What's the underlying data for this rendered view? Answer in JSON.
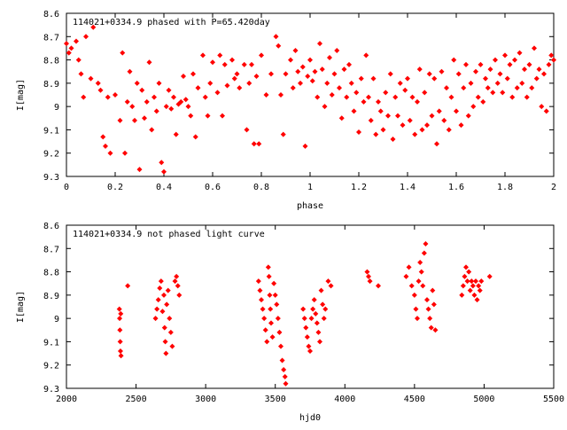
{
  "chart_data": [
    {
      "type": "scatter",
      "title": "114021+0334.9 phased with P=65.420day",
      "xlabel": "phase",
      "ylabel": "I[mag]",
      "xlim": [
        0,
        2
      ],
      "ylim": [
        8.6,
        9.3
      ],
      "y_inverted": true,
      "grid": false,
      "marker_color": "#ff0000",
      "marker": "filled-diamond",
      "x_ticks": [
        "0",
        "0.2",
        "0.4",
        "0.6",
        "0.8",
        "1",
        "1.2",
        "1.4",
        "1.6",
        "1.8",
        "2"
      ],
      "y_ticks": [
        "8.6",
        "8.7",
        "8.8",
        "8.9",
        "9",
        "9.1",
        "9.2",
        "9.3"
      ],
      "points": [
        [
          0.0,
          8.73
        ],
        [
          0.01,
          8.77
        ],
        [
          0.02,
          8.75
        ],
        [
          0.04,
          8.72
        ],
        [
          0.05,
          8.8
        ],
        [
          0.06,
          8.86
        ],
        [
          0.07,
          8.96
        ],
        [
          0.08,
          8.7
        ],
        [
          0.1,
          8.88
        ],
        [
          0.11,
          8.66
        ],
        [
          0.13,
          8.9
        ],
        [
          0.14,
          8.93
        ],
        [
          0.15,
          9.13
        ],
        [
          0.16,
          9.17
        ],
        [
          0.17,
          8.96
        ],
        [
          0.18,
          9.2
        ],
        [
          0.2,
          8.95
        ],
        [
          0.22,
          9.06
        ],
        [
          0.23,
          8.77
        ],
        [
          0.24,
          9.2
        ],
        [
          0.25,
          8.98
        ],
        [
          0.26,
          8.85
        ],
        [
          0.27,
          9.0
        ],
        [
          0.28,
          9.06
        ],
        [
          0.29,
          8.9
        ],
        [
          0.3,
          9.27
        ],
        [
          0.31,
          8.93
        ],
        [
          0.32,
          9.05
        ],
        [
          0.33,
          8.98
        ],
        [
          0.34,
          8.81
        ],
        [
          0.35,
          9.1
        ],
        [
          0.36,
          8.96
        ],
        [
          0.37,
          9.02
        ],
        [
          0.38,
          8.9
        ],
        [
          0.39,
          9.24
        ],
        [
          0.4,
          9.28
        ],
        [
          0.41,
          9.0
        ],
        [
          0.42,
          8.93
        ],
        [
          0.43,
          9.01
        ],
        [
          0.44,
          8.96
        ],
        [
          0.45,
          9.12
        ],
        [
          0.46,
          8.99
        ],
        [
          0.47,
          8.98
        ],
        [
          0.48,
          8.87
        ],
        [
          0.49,
          8.97
        ],
        [
          0.5,
          9.0
        ],
        [
          0.51,
          9.04
        ],
        [
          0.52,
          8.86
        ],
        [
          0.53,
          9.13
        ],
        [
          0.54,
          8.92
        ],
        [
          0.56,
          8.78
        ],
        [
          0.57,
          8.96
        ],
        [
          0.58,
          9.04
        ],
        [
          0.59,
          8.9
        ],
        [
          0.6,
          8.81
        ],
        [
          0.62,
          8.94
        ],
        [
          0.63,
          8.78
        ],
        [
          0.64,
          9.04
        ],
        [
          0.65,
          8.82
        ],
        [
          0.66,
          8.91
        ],
        [
          0.68,
          8.8
        ],
        [
          0.69,
          8.88
        ],
        [
          0.7,
          8.86
        ],
        [
          0.71,
          8.92
        ],
        [
          0.73,
          8.82
        ],
        [
          0.74,
          9.1
        ],
        [
          0.75,
          8.9
        ],
        [
          0.76,
          8.82
        ],
        [
          0.77,
          9.16
        ],
        [
          0.78,
          8.87
        ],
        [
          0.79,
          9.16
        ],
        [
          0.8,
          8.78
        ],
        [
          0.82,
          8.95
        ],
        [
          0.84,
          8.86
        ],
        [
          0.86,
          8.7
        ],
        [
          0.87,
          8.74
        ],
        [
          0.88,
          8.95
        ],
        [
          0.89,
          9.12
        ],
        [
          0.9,
          8.86
        ],
        [
          0.92,
          8.8
        ],
        [
          0.93,
          8.92
        ],
        [
          0.94,
          8.76
        ],
        [
          0.95,
          8.85
        ],
        [
          0.96,
          8.9
        ],
        [
          0.97,
          8.83
        ],
        [
          0.98,
          9.17
        ],
        [
          0.99,
          8.87
        ],
        [
          1.0,
          8.8
        ],
        [
          1.01,
          8.89
        ],
        [
          1.02,
          8.85
        ],
        [
          1.03,
          8.96
        ],
        [
          1.04,
          8.73
        ],
        [
          1.05,
          8.84
        ],
        [
          1.06,
          9.0
        ],
        [
          1.07,
          8.9
        ],
        [
          1.08,
          8.79
        ],
        [
          1.09,
          8.95
        ],
        [
          1.1,
          8.86
        ],
        [
          1.11,
          8.76
        ],
        [
          1.12,
          8.92
        ],
        [
          1.13,
          9.05
        ],
        [
          1.14,
          8.84
        ],
        [
          1.15,
          8.96
        ],
        [
          1.16,
          8.82
        ],
        [
          1.17,
          8.9
        ],
        [
          1.18,
          9.02
        ],
        [
          1.19,
          8.94
        ],
        [
          1.2,
          9.11
        ],
        [
          1.21,
          8.88
        ],
        [
          1.22,
          8.98
        ],
        [
          1.23,
          8.78
        ],
        [
          1.24,
          8.96
        ],
        [
          1.25,
          9.06
        ],
        [
          1.26,
          8.88
        ],
        [
          1.27,
          9.12
        ],
        [
          1.28,
          8.98
        ],
        [
          1.29,
          9.02
        ],
        [
          1.3,
          9.1
        ],
        [
          1.31,
          8.94
        ],
        [
          1.32,
          9.04
        ],
        [
          1.33,
          8.86
        ],
        [
          1.34,
          9.14
        ],
        [
          1.35,
          8.96
        ],
        [
          1.36,
          9.04
        ],
        [
          1.37,
          8.9
        ],
        [
          1.38,
          9.08
        ],
        [
          1.39,
          8.93
        ],
        [
          1.4,
          8.88
        ],
        [
          1.41,
          9.06
        ],
        [
          1.42,
          8.96
        ],
        [
          1.43,
          9.12
        ],
        [
          1.44,
          8.98
        ],
        [
          1.45,
          8.84
        ],
        [
          1.46,
          9.1
        ],
        [
          1.47,
          8.94
        ],
        [
          1.48,
          9.08
        ],
        [
          1.49,
          8.86
        ],
        [
          1.5,
          9.04
        ],
        [
          1.51,
          8.88
        ],
        [
          1.52,
          9.16
        ],
        [
          1.53,
          9.02
        ],
        [
          1.54,
          8.85
        ],
        [
          1.55,
          9.06
        ],
        [
          1.56,
          8.92
        ],
        [
          1.57,
          9.1
        ],
        [
          1.58,
          8.96
        ],
        [
          1.59,
          8.8
        ],
        [
          1.6,
          9.02
        ],
        [
          1.61,
          8.86
        ],
        [
          1.62,
          9.08
        ],
        [
          1.63,
          8.92
        ],
        [
          1.64,
          8.82
        ],
        [
          1.65,
          9.04
        ],
        [
          1.66,
          8.9
        ],
        [
          1.67,
          9.0
        ],
        [
          1.68,
          8.85
        ],
        [
          1.69,
          8.96
        ],
        [
          1.7,
          8.82
        ],
        [
          1.71,
          8.98
        ],
        [
          1.72,
          8.88
        ],
        [
          1.73,
          8.92
        ],
        [
          1.74,
          8.84
        ],
        [
          1.75,
          8.94
        ],
        [
          1.76,
          8.8
        ],
        [
          1.77,
          8.9
        ],
        [
          1.78,
          8.86
        ],
        [
          1.79,
          8.94
        ],
        [
          1.8,
          8.78
        ],
        [
          1.81,
          8.88
        ],
        [
          1.82,
          8.82
        ],
        [
          1.83,
          8.96
        ],
        [
          1.84,
          8.8
        ],
        [
          1.85,
          8.92
        ],
        [
          1.86,
          8.77
        ],
        [
          1.87,
          8.9
        ],
        [
          1.88,
          8.84
        ],
        [
          1.89,
          8.96
        ],
        [
          1.9,
          8.82
        ],
        [
          1.91,
          8.92
        ],
        [
          1.92,
          8.75
        ],
        [
          1.93,
          8.88
        ],
        [
          1.94,
          8.84
        ],
        [
          1.95,
          9.0
        ],
        [
          1.96,
          8.86
        ],
        [
          1.97,
          9.02
        ],
        [
          1.98,
          8.82
        ],
        [
          1.99,
          8.78
        ],
        [
          2.0,
          8.8
        ]
      ]
    },
    {
      "type": "scatter",
      "title": "114021+0334.9 not phased light curve",
      "xlabel": "hjd0",
      "ylabel": "I[mag]",
      "xlim": [
        2000,
        5500
      ],
      "ylim": [
        8.6,
        9.3
      ],
      "y_inverted": true,
      "grid": false,
      "marker_color": "#ff0000",
      "marker": "filled-diamond",
      "x_ticks": [
        "2000",
        "2500",
        "3000",
        "3500",
        "4000",
        "4500",
        "5000",
        "5500"
      ],
      "y_ticks": [
        "8.6",
        "8.7",
        "8.8",
        "8.9",
        "9",
        "9.1",
        "9.2",
        "9.3"
      ],
      "points": [
        [
          2380,
          8.96
        ],
        [
          2382,
          9.0
        ],
        [
          2384,
          9.05
        ],
        [
          2386,
          9.1
        ],
        [
          2388,
          9.14
        ],
        [
          2390,
          8.98
        ],
        [
          2392,
          9.16
        ],
        [
          2440,
          8.86
        ],
        [
          2640,
          9.0
        ],
        [
          2650,
          8.96
        ],
        [
          2660,
          8.92
        ],
        [
          2670,
          8.87
        ],
        [
          2680,
          8.84
        ],
        [
          2690,
          8.97
        ],
        [
          2700,
          8.9
        ],
        [
          2705,
          9.04
        ],
        [
          2710,
          9.1
        ],
        [
          2715,
          9.15
        ],
        [
          2720,
          8.94
        ],
        [
          2730,
          8.88
        ],
        [
          2740,
          9.0
        ],
        [
          2750,
          9.06
        ],
        [
          2760,
          9.12
        ],
        [
          2780,
          8.84
        ],
        [
          2790,
          8.82
        ],
        [
          2800,
          8.86
        ],
        [
          2810,
          8.9
        ],
        [
          3380,
          8.84
        ],
        [
          3390,
          8.88
        ],
        [
          3400,
          8.92
        ],
        [
          3410,
          8.96
        ],
        [
          3420,
          9.0
        ],
        [
          3430,
          9.05
        ],
        [
          3440,
          9.1
        ],
        [
          3450,
          8.78
        ],
        [
          3455,
          8.82
        ],
        [
          3460,
          8.9
        ],
        [
          3465,
          8.96
        ],
        [
          3470,
          9.02
        ],
        [
          3480,
          9.08
        ],
        [
          3490,
          8.85
        ],
        [
          3500,
          8.9
        ],
        [
          3510,
          8.94
        ],
        [
          3520,
          9.0
        ],
        [
          3530,
          9.06
        ],
        [
          3540,
          9.12
        ],
        [
          3550,
          9.18
        ],
        [
          3560,
          9.22
        ],
        [
          3570,
          9.25
        ],
        [
          3575,
          9.28
        ],
        [
          3700,
          8.96
        ],
        [
          3710,
          9.0
        ],
        [
          3720,
          9.04
        ],
        [
          3730,
          9.08
        ],
        [
          3740,
          9.12
        ],
        [
          3750,
          9.14
        ],
        [
          3760,
          9.0
        ],
        [
          3770,
          8.96
        ],
        [
          3780,
          8.92
        ],
        [
          3790,
          8.98
        ],
        [
          3800,
          9.02
        ],
        [
          3810,
          9.06
        ],
        [
          3820,
          9.1
        ],
        [
          3830,
          8.88
        ],
        [
          3840,
          8.94
        ],
        [
          3850,
          9.0
        ],
        [
          3860,
          8.96
        ],
        [
          3880,
          8.84
        ],
        [
          3900,
          8.86
        ],
        [
          4160,
          8.8
        ],
        [
          4170,
          8.82
        ],
        [
          4180,
          8.84
        ],
        [
          4240,
          8.86
        ],
        [
          4440,
          8.82
        ],
        [
          4460,
          8.78
        ],
        [
          4480,
          8.86
        ],
        [
          4500,
          8.9
        ],
        [
          4510,
          8.96
        ],
        [
          4520,
          9.0
        ],
        [
          4530,
          8.84
        ],
        [
          4540,
          8.76
        ],
        [
          4550,
          8.8
        ],
        [
          4560,
          8.86
        ],
        [
          4570,
          8.72
        ],
        [
          4580,
          8.68
        ],
        [
          4590,
          8.92
        ],
        [
          4600,
          8.96
        ],
        [
          4610,
          9.0
        ],
        [
          4620,
          9.04
        ],
        [
          4630,
          8.88
        ],
        [
          4640,
          8.94
        ],
        [
          4650,
          9.05
        ],
        [
          4840,
          8.9
        ],
        [
          4850,
          8.86
        ],
        [
          4860,
          8.82
        ],
        [
          4870,
          8.78
        ],
        [
          4880,
          8.84
        ],
        [
          4890,
          8.8
        ],
        [
          4900,
          8.88
        ],
        [
          4910,
          8.84
        ],
        [
          4920,
          8.86
        ],
        [
          4930,
          8.9
        ],
        [
          4940,
          8.84
        ],
        [
          4950,
          8.92
        ],
        [
          4960,
          8.86
        ],
        [
          4970,
          8.88
        ],
        [
          4980,
          8.84
        ],
        [
          5040,
          8.82
        ]
      ]
    }
  ]
}
